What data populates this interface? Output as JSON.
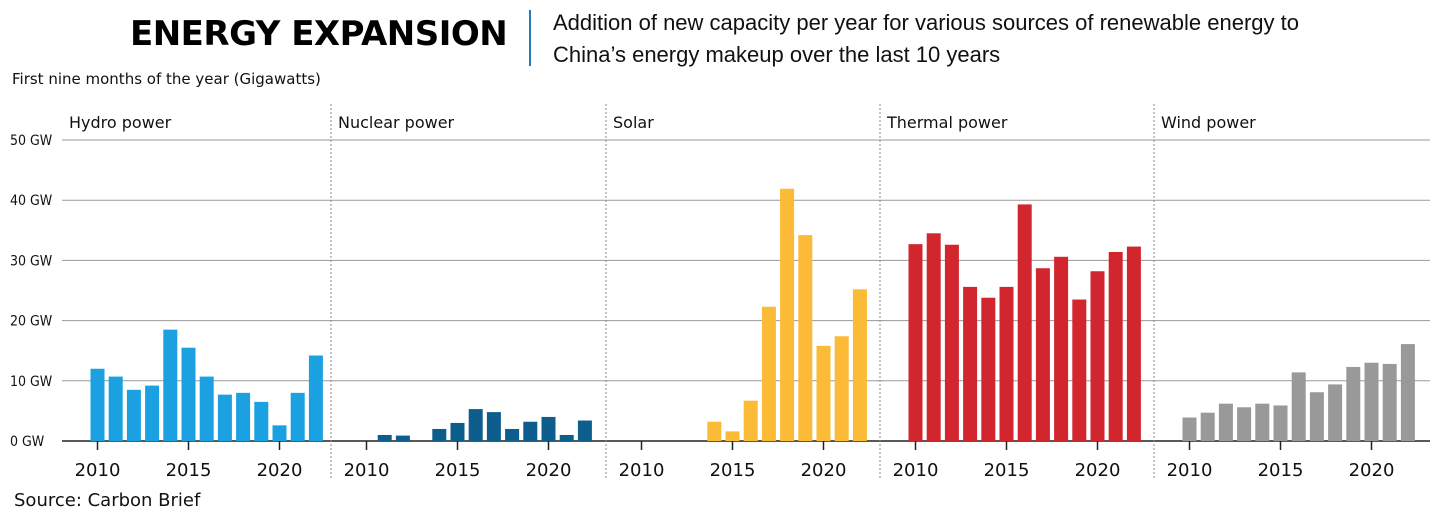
{
  "header": {
    "title": "ENERGY EXPANSION",
    "subtitle": "Addition of new capacity per year for various sources of renewable energy to China’s energy makeup over the last 10 years",
    "units_label": "First nine months of the year (Gigawatts)",
    "source": "Source: Carbon Brief"
  },
  "chart_data": {
    "type": "bar",
    "ylim": [
      0,
      50
    ],
    "yticks": [
      {
        "value": 0,
        "label": "0 GW"
      },
      {
        "value": 10,
        "label": "10 GW"
      },
      {
        "value": 20,
        "label": "20 GW"
      },
      {
        "value": 30,
        "label": "30 GW"
      },
      {
        "value": 40,
        "label": "40 GW"
      },
      {
        "value": 50,
        "label": "50 GW"
      }
    ],
    "xticks": [
      2010,
      2015,
      2020
    ],
    "grid": true,
    "years": [
      2010,
      2011,
      2012,
      2013,
      2014,
      2015,
      2016,
      2017,
      2018,
      2019,
      2020,
      2021,
      2022
    ],
    "panels": [
      {
        "name": "Hydro power",
        "color": "#1ba1e2",
        "values": [
          12,
          10.7,
          8.5,
          9.2,
          18.5,
          15.5,
          10.7,
          7.7,
          8,
          6.5,
          2.6,
          8,
          14.2
        ]
      },
      {
        "name": "Nuclear power",
        "color": "#0d5e8c",
        "values": [
          0,
          1,
          0.9,
          0,
          2,
          3,
          5.3,
          4.8,
          2,
          3.2,
          4,
          1,
          3.4
        ]
      },
      {
        "name": "Solar",
        "color": "#fbbb36",
        "values": [
          0,
          0,
          0,
          0,
          3.2,
          1.6,
          6.7,
          22.3,
          41.9,
          34.2,
          15.8,
          17.4,
          25.2
        ]
      },
      {
        "name": "Thermal power",
        "color": "#d2262f",
        "values": [
          32.7,
          34.5,
          32.6,
          25.6,
          23.8,
          25.6,
          39.3,
          28.7,
          30.6,
          23.5,
          28.2,
          31.4,
          32.3
        ]
      },
      {
        "name": "Wind power",
        "color": "#999999",
        "values": [
          3.9,
          4.7,
          6.2,
          5.6,
          6.2,
          5.9,
          11.4,
          8.1,
          9.4,
          12.3,
          13,
          12.8,
          16.1
        ]
      }
    ]
  }
}
